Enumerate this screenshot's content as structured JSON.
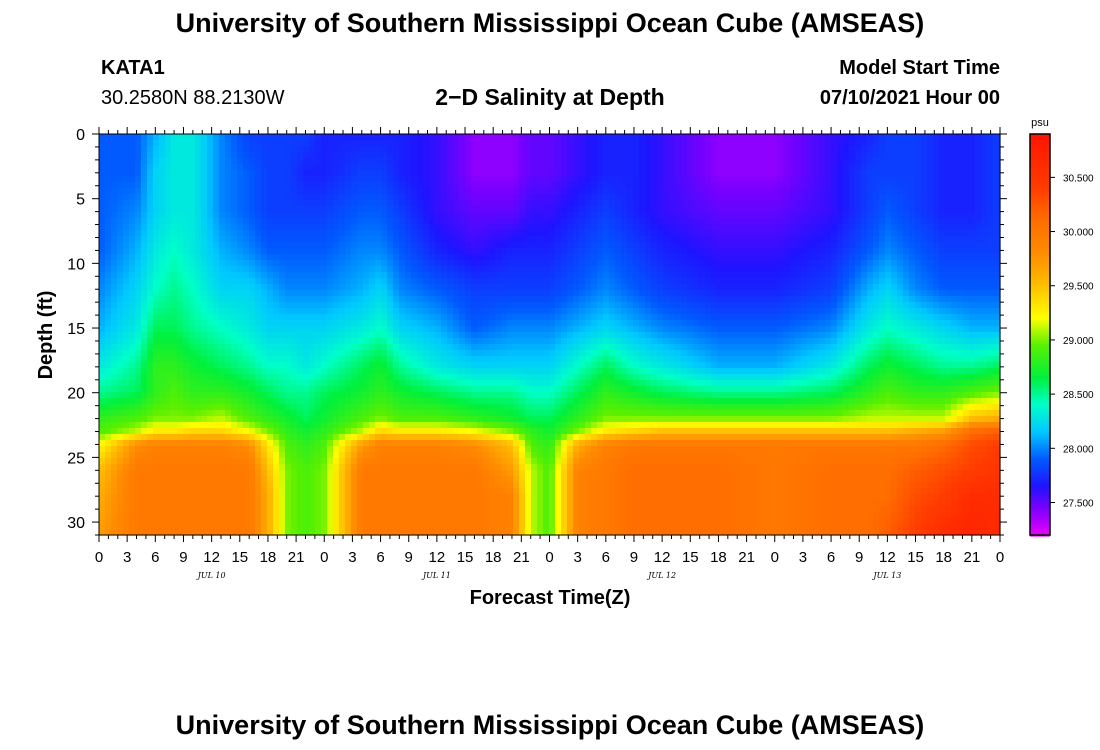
{
  "header": {
    "title_top": "University of Southern Mississippi Ocean Cube (AMSEAS)",
    "title_bottom": "University of Southern Mississippi Ocean Cube (AMSEAS)",
    "station_id": "KATA1",
    "coordinates": "30.2580N  88.2130W",
    "plot_title": "2−D Salinity at Depth",
    "model_start_label": "Model Start Time",
    "model_start_value": "07/10/2021 Hour 00"
  },
  "chart_data": {
    "type": "heatmap",
    "title": "2−D Salinity at Depth",
    "xlabel": "Forecast Time(Z)",
    "ylabel": "Depth (ft)",
    "x_range_hours": [
      0,
      96
    ],
    "ylim": [
      0,
      31
    ],
    "y_ticks": [
      0,
      5,
      10,
      15,
      20,
      25,
      30
    ],
    "x_tick_step_hours": 3,
    "x_tick_labels": [
      "0",
      "3",
      "6",
      "9",
      "12",
      "15",
      "18",
      "21",
      "0",
      "3",
      "6",
      "9",
      "12",
      "15",
      "18",
      "21",
      "0",
      "3",
      "6",
      "9",
      "12",
      "15",
      "18",
      "21",
      "0",
      "3",
      "6",
      "9",
      "12",
      "15",
      "18",
      "21",
      "0"
    ],
    "date_labels": [
      {
        "label": "JUL 10",
        "hour": 12
      },
      {
        "label": "JUL 11",
        "hour": 36
      },
      {
        "label": "JUL 12",
        "hour": 60
      },
      {
        "label": "JUL 13",
        "hour": 84
      }
    ],
    "colorbar": {
      "units": "psu",
      "min": 27.2,
      "max": 30.9,
      "ticks": [
        27.5,
        28.0,
        28.5,
        29.0,
        29.5,
        30.0,
        30.5
      ],
      "tick_labels": [
        "27.500",
        "28.000",
        "28.500",
        "29.000",
        "29.500",
        "30.000",
        "30.500"
      ]
    },
    "field": {
      "time_hours": [
        0,
        4,
        6,
        8,
        10,
        13,
        16,
        18,
        20,
        22,
        24,
        28,
        30,
        32,
        36,
        40,
        44,
        46,
        48,
        51,
        54,
        57,
        60,
        66,
        72,
        78,
        82,
        84,
        87,
        90,
        93,
        96
      ],
      "depth_ft": [
        0,
        3,
        6,
        9,
        12,
        15,
        18,
        20,
        22,
        23,
        24,
        26,
        28,
        31
      ],
      "salinity_psu": [
        [
          27.9,
          27.9,
          27.9,
          27.9,
          28.0,
          28.1,
          28.3,
          28.5,
          28.8,
          28.9,
          29.2,
          29.5,
          29.6,
          29.7
        ],
        [
          27.9,
          27.9,
          28.0,
          28.1,
          28.2,
          28.3,
          28.5,
          28.6,
          28.9,
          29.1,
          29.8,
          30.0,
          30.0,
          30.0
        ],
        [
          28.1,
          28.2,
          28.2,
          28.3,
          28.4,
          28.6,
          28.8,
          28.8,
          29.0,
          29.3,
          29.9,
          30.0,
          30.0,
          30.0
        ],
        [
          28.3,
          28.3,
          28.3,
          28.4,
          28.5,
          28.6,
          28.8,
          28.9,
          29.0,
          29.3,
          29.9,
          30.0,
          30.0,
          30.0
        ],
        [
          28.3,
          28.3,
          28.3,
          28.3,
          28.4,
          28.5,
          28.7,
          28.8,
          29.0,
          29.4,
          29.9,
          30.0,
          30.0,
          30.0
        ],
        [
          28.0,
          28.0,
          28.0,
          28.1,
          28.2,
          28.4,
          28.6,
          28.8,
          29.1,
          29.4,
          29.9,
          30.0,
          30.0,
          30.0
        ],
        [
          27.8,
          27.9,
          27.9,
          28.0,
          28.2,
          28.3,
          28.5,
          28.7,
          28.9,
          29.2,
          29.8,
          30.0,
          30.0,
          30.0
        ],
        [
          27.8,
          27.8,
          27.8,
          27.9,
          28.1,
          28.2,
          28.4,
          28.6,
          28.8,
          29.0,
          29.3,
          29.5,
          29.6,
          29.6
        ],
        [
          27.8,
          27.8,
          27.8,
          27.9,
          28.0,
          28.2,
          28.4,
          28.5,
          28.7,
          28.8,
          28.9,
          29.0,
          29.0,
          29.0
        ],
        [
          27.8,
          27.7,
          27.8,
          27.9,
          28.0,
          28.2,
          28.3,
          28.5,
          28.6,
          28.7,
          28.8,
          28.9,
          28.9,
          28.9
        ],
        [
          27.7,
          27.7,
          27.8,
          27.9,
          28.0,
          28.2,
          28.4,
          28.6,
          28.7,
          28.8,
          28.9,
          29.0,
          29.0,
          29.0
        ],
        [
          27.7,
          27.8,
          27.9,
          28.0,
          28.1,
          28.3,
          28.6,
          28.7,
          28.9,
          29.1,
          29.7,
          30.0,
          30.0,
          30.0
        ],
        [
          27.7,
          27.8,
          27.9,
          28.0,
          28.2,
          28.4,
          28.7,
          28.8,
          29.0,
          29.4,
          29.9,
          30.0,
          30.0,
          30.0
        ],
        [
          27.7,
          27.7,
          27.8,
          27.9,
          28.0,
          28.2,
          28.5,
          28.7,
          28.9,
          29.3,
          29.9,
          30.0,
          30.0,
          30.0
        ],
        [
          27.6,
          27.6,
          27.6,
          27.7,
          27.9,
          28.1,
          28.3,
          28.6,
          28.9,
          29.3,
          29.9,
          30.0,
          30.0,
          30.0
        ],
        [
          27.4,
          27.4,
          27.5,
          27.6,
          27.8,
          27.9,
          28.2,
          28.5,
          28.8,
          29.2,
          29.8,
          30.0,
          30.0,
          30.0
        ],
        [
          27.4,
          27.4,
          27.5,
          27.7,
          27.8,
          28.0,
          28.2,
          28.5,
          28.7,
          29.0,
          29.5,
          29.7,
          29.9,
          29.9
        ],
        [
          27.5,
          27.5,
          27.6,
          27.7,
          27.8,
          28.0,
          28.2,
          28.4,
          28.6,
          28.8,
          28.9,
          29.1,
          29.1,
          29.1
        ],
        [
          27.5,
          27.5,
          27.6,
          27.7,
          27.8,
          28.0,
          28.2,
          28.4,
          28.6,
          28.7,
          28.8,
          28.9,
          28.9,
          28.9
        ],
        [
          27.6,
          27.6,
          27.7,
          27.8,
          27.9,
          28.1,
          28.4,
          28.6,
          28.8,
          29.0,
          29.6,
          29.9,
          29.9,
          29.9
        ],
        [
          27.7,
          27.7,
          27.8,
          27.9,
          28.0,
          28.2,
          28.6,
          28.8,
          29.0,
          29.3,
          29.9,
          30.0,
          30.0,
          30.0
        ],
        [
          27.7,
          27.7,
          27.7,
          27.8,
          27.9,
          28.1,
          28.4,
          28.7,
          29.0,
          29.4,
          30.0,
          30.1,
          30.1,
          30.1
        ],
        [
          27.6,
          27.6,
          27.6,
          27.7,
          27.8,
          28.0,
          28.3,
          28.6,
          29.0,
          29.5,
          30.0,
          30.1,
          30.1,
          30.1
        ],
        [
          27.4,
          27.4,
          27.5,
          27.6,
          27.7,
          27.9,
          28.1,
          28.5,
          29.0,
          29.5,
          30.0,
          30.1,
          30.1,
          30.1
        ],
        [
          27.4,
          27.4,
          27.5,
          27.6,
          27.7,
          27.9,
          28.1,
          28.5,
          29.0,
          29.5,
          30.0,
          30.0,
          30.0,
          30.0
        ],
        [
          27.6,
          27.6,
          27.6,
          27.7,
          27.8,
          28.0,
          28.3,
          28.6,
          29.0,
          29.5,
          30.0,
          30.1,
          30.1,
          30.1
        ],
        [
          27.7,
          27.8,
          27.8,
          27.9,
          28.1,
          28.3,
          28.6,
          28.8,
          29.1,
          29.5,
          30.0,
          30.1,
          30.1,
          30.1
        ],
        [
          27.8,
          27.8,
          27.9,
          28.0,
          28.2,
          28.4,
          28.7,
          28.9,
          29.1,
          29.5,
          30.0,
          30.1,
          30.1,
          30.2
        ],
        [
          27.8,
          27.8,
          27.8,
          27.9,
          28.0,
          28.3,
          28.6,
          28.8,
          29.1,
          29.6,
          30.0,
          30.2,
          30.3,
          30.4
        ],
        [
          27.7,
          27.7,
          27.7,
          27.8,
          27.9,
          28.2,
          28.5,
          28.8,
          29.1,
          29.7,
          30.1,
          30.3,
          30.4,
          30.6
        ],
        [
          27.7,
          27.7,
          27.7,
          27.8,
          27.9,
          28.1,
          28.5,
          28.9,
          29.5,
          30.1,
          30.3,
          30.4,
          30.6,
          30.7
        ],
        [
          27.8,
          27.8,
          27.8,
          27.8,
          27.9,
          28.1,
          28.6,
          29.0,
          29.6,
          30.2,
          30.4,
          30.5,
          30.6,
          30.6
        ]
      ]
    }
  }
}
